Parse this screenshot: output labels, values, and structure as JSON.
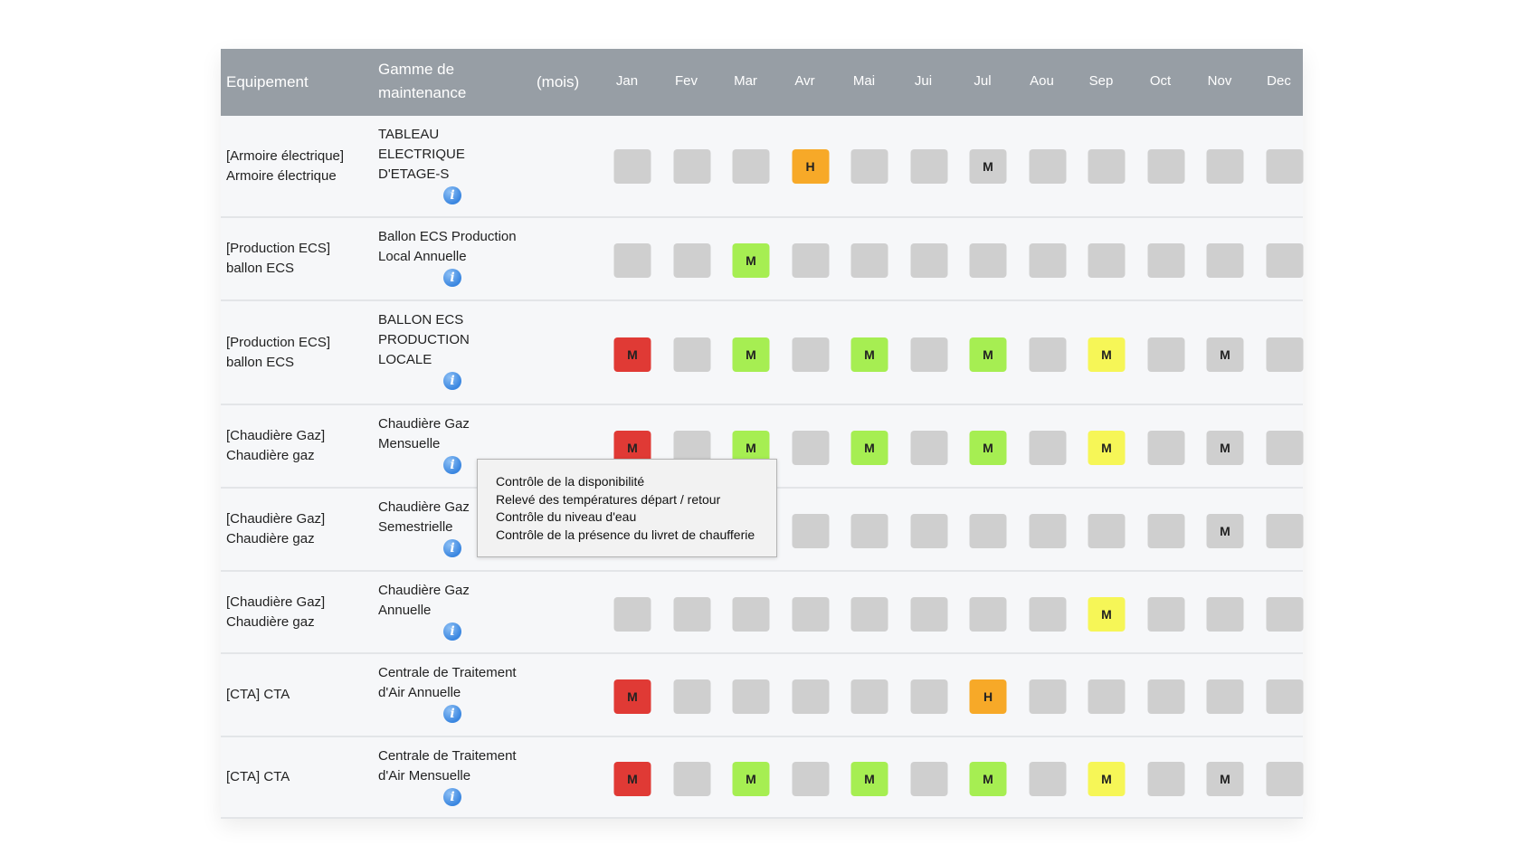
{
  "header": {
    "equipement": "Equipement",
    "gamme_line1": "Gamme de",
    "gamme_line2": "maintenance",
    "mois": "(mois)",
    "months": [
      "Jan",
      "Fev",
      "Mar",
      "Avr",
      "Mai",
      "Jui",
      "Jul",
      "Aou",
      "Sep",
      "Oct",
      "Nov",
      "Dec"
    ]
  },
  "rows": [
    {
      "equip": [
        "[Armoire électrique]",
        "Armoire électrique"
      ],
      "gamme": [
        "TABLEAU",
        "ELECTRIQUE",
        "D'ETAGE-S"
      ],
      "cells": [
        "",
        "",
        "",
        "H:orange",
        "",
        "",
        "M:grey",
        "",
        "",
        "",
        "",
        ""
      ]
    },
    {
      "equip": [
        "[Production ECS]",
        "ballon ECS"
      ],
      "gamme": [
        "Ballon ECS Production",
        "Local Annuelle"
      ],
      "cells": [
        "",
        "",
        "M:green",
        "",
        "",
        "",
        "",
        "",
        "",
        "",
        "",
        ""
      ]
    },
    {
      "equip": [
        "[Production ECS]",
        "ballon ECS"
      ],
      "gamme": [
        "BALLON ECS",
        "PRODUCTION",
        "LOCALE"
      ],
      "cells": [
        "M:red",
        "",
        "M:green",
        "",
        "M:green",
        "",
        "M:green",
        "",
        "M:yellow",
        "",
        "M:grey",
        ""
      ]
    },
    {
      "equip": [
        "[Chaudière Gaz]",
        "Chaudière gaz"
      ],
      "gamme": [
        "Chaudière Gaz",
        "Mensuelle"
      ],
      "cells": [
        "M:red",
        "",
        "M:green",
        "",
        "M:green",
        "",
        "M:green",
        "",
        "M:yellow",
        "",
        "M:grey",
        ""
      ]
    },
    {
      "equip": [
        "[Chaudière Gaz]",
        "Chaudière gaz"
      ],
      "gamme": [
        "Chaudière Gaz",
        "Semestrielle"
      ],
      "cells": [
        "",
        "",
        "",
        "",
        "",
        "",
        "",
        "",
        "",
        "",
        "M:grey",
        ""
      ]
    },
    {
      "equip": [
        "[Chaudière Gaz]",
        "Chaudière gaz"
      ],
      "gamme": [
        "Chaudière Gaz",
        "Annuelle"
      ],
      "cells": [
        "",
        "",
        "",
        "",
        "",
        "",
        "",
        "",
        "M:yellow",
        "",
        "",
        ""
      ]
    },
    {
      "equip": [
        "[CTA] CTA"
      ],
      "gamme": [
        "Centrale de Traitement",
        "d'Air Annuelle"
      ],
      "cells": [
        "M:red",
        "",
        "",
        "",
        "",
        "",
        "H:orange",
        "",
        "",
        "",
        "",
        ""
      ]
    },
    {
      "equip": [
        "[CTA] CTA"
      ],
      "gamme": [
        "Centrale de Traitement",
        "d'Air Mensuelle"
      ],
      "cells": [
        "M:red",
        "",
        "M:green",
        "",
        "M:green",
        "",
        "M:green",
        "",
        "M:yellow",
        "",
        "M:grey",
        ""
      ]
    }
  ],
  "tooltip": {
    "lines": [
      "Contrôle de la disponibilité",
      "Relevé des températures départ / retour",
      "Contrôle du niveau d'eau",
      "Contrôle de la présence du livret de chaufferie"
    ]
  },
  "colors": {
    "header_bg": "#979ea5",
    "empty": "#cfcfcf",
    "red": "#e03a35",
    "green": "#a6ee52",
    "yellow": "#f6f657",
    "orange": "#f7a928"
  },
  "icons": {
    "info": "info-icon"
  }
}
